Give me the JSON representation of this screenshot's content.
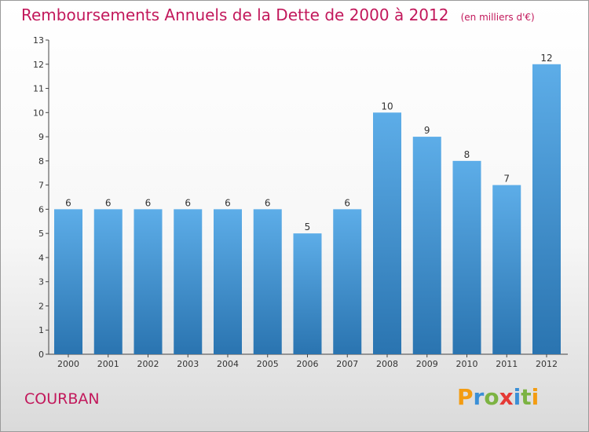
{
  "header": {
    "title": "Remboursements Annuels de la Dette de 2000 à 2012",
    "unit": "(en milliers d'€)"
  },
  "footer": {
    "place": "COURBAN",
    "brand": "Proxiti",
    "brand_colors": [
      "#f39c12",
      "#3a8fd6",
      "#7cb342",
      "#e53935",
      "#3a8fd6",
      "#7cb342",
      "#f39c12"
    ]
  },
  "chart_data": {
    "type": "bar",
    "title": "Remboursements Annuels de la Dette de 2000 à 2012",
    "unit": "(en milliers d'€)",
    "categories": [
      "2000",
      "2001",
      "2002",
      "2003",
      "2004",
      "2005",
      "2006",
      "2007",
      "2008",
      "2009",
      "2010",
      "2011",
      "2012"
    ],
    "values": [
      6,
      6,
      6,
      6,
      6,
      6,
      5,
      6,
      10,
      9,
      8,
      7,
      12
    ],
    "ylim": [
      0,
      13
    ],
    "yticks": [
      0,
      1,
      2,
      3,
      4,
      5,
      6,
      7,
      8,
      9,
      10,
      11,
      12,
      13
    ],
    "grid": false,
    "bar_color_top": "#5dade8",
    "bar_color_bottom": "#2a74b0",
    "label_color": "#333333"
  }
}
